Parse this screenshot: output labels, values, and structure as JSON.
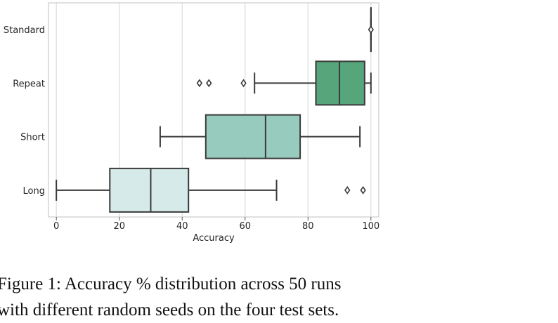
{
  "chart_data": {
    "type": "box",
    "orientation": "horizontal",
    "categories": [
      "Standard",
      "Repeat",
      "Short",
      "Long"
    ],
    "xlabel": "Accuracy",
    "xlim": [
      -2.5,
      102.5
    ],
    "xticks": [
      0,
      20,
      40,
      60,
      80,
      100
    ],
    "grid": "vertical",
    "boxes": [
      {
        "category": "Standard",
        "whisker_low": 100,
        "q1": 100,
        "median": 100,
        "q3": 100,
        "whisker_high": 100,
        "outliers": [
          100
        ],
        "color": "#2a6b4f"
      },
      {
        "category": "Repeat",
        "whisker_low": 63,
        "q1": 82.5,
        "median": 90,
        "q3": 98,
        "whisker_high": 100,
        "outliers": [
          45.5,
          48.5,
          59.5
        ],
        "color": "#57a67b"
      },
      {
        "category": "Short",
        "whisker_low": 33,
        "q1": 47.5,
        "median": 66.5,
        "q3": 77.5,
        "whisker_high": 96.5,
        "outliers": [],
        "color": "#97cbbd"
      },
      {
        "category": "Long",
        "whisker_low": 0,
        "q1": 17,
        "median": 30,
        "q3": 42,
        "whisker_high": 70,
        "outliers": [
          92.5,
          97.5
        ],
        "color": "#d6eaea"
      }
    ]
  },
  "caption": {
    "line1": "Figure 1:  Accuracy % distribution across 50 runs",
    "line2": "with different random seeds on the four test sets."
  }
}
